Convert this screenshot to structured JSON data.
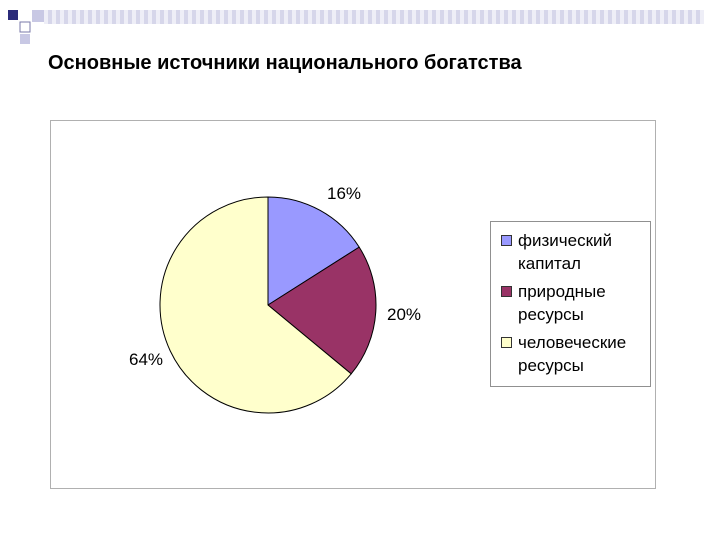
{
  "slide": {
    "title": "Основные источники национального богатства"
  },
  "chart_data": {
    "type": "pie",
    "title": "",
    "categories": [
      "физический капитал",
      "природные ресурсы",
      "человеческие ресурсы"
    ],
    "values": [
      16,
      20,
      64
    ],
    "labels": [
      "16%",
      "20%",
      "64%"
    ],
    "colors": [
      "#9999ff",
      "#993366",
      "#ffffcc"
    ],
    "legend": "right"
  },
  "legend": {
    "items": [
      {
        "label": "физический капитал",
        "color": "#9999ff"
      },
      {
        "label": "природные ресурсы",
        "color": "#993366"
      },
      {
        "label": "человеческие ресурсы",
        "color": "#ffffcc"
      }
    ]
  }
}
